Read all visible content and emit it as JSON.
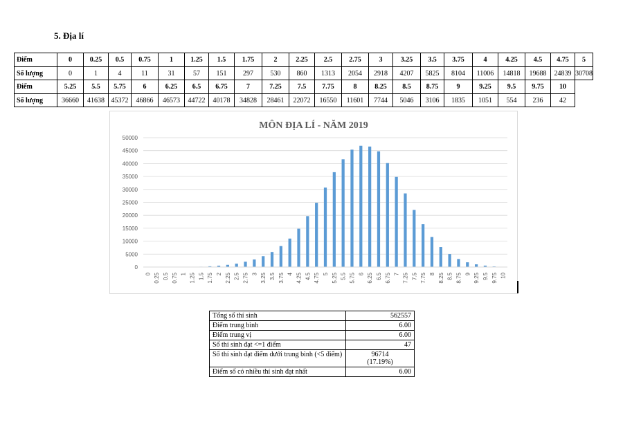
{
  "heading": "5.  Địa lí",
  "score_table": {
    "row1_header": "Điểm",
    "row1": [
      "0",
      "0.25",
      "0.5",
      "0.75",
      "1",
      "1.25",
      "1.5",
      "1.75",
      "2",
      "2.25",
      "2.5",
      "2.75",
      "3",
      "3.25",
      "3.5",
      "3.75",
      "4",
      "4.25",
      "4.5",
      "4.75",
      "5"
    ],
    "row2_header": "Số lượng",
    "row2": [
      "0",
      "1",
      "4",
      "11",
      "31",
      "57",
      "151",
      "297",
      "530",
      "860",
      "1313",
      "2054",
      "2918",
      "4207",
      "5825",
      "8104",
      "11006",
      "14818",
      "19688",
      "24839",
      "30708"
    ],
    "row3_header": "Điểm",
    "row3": [
      "5.25",
      "5.5",
      "5.75",
      "6",
      "6.25",
      "6.5",
      "6.75",
      "7",
      "7.25",
      "7.5",
      "7.75",
      "8",
      "8.25",
      "8.5",
      "8.75",
      "9",
      "9.25",
      "9.5",
      "9.75",
      "10"
    ],
    "row4_header": "Số lượng",
    "row4": [
      "36660",
      "41638",
      "45372",
      "46866",
      "46573",
      "44722",
      "40178",
      "34828",
      "28461",
      "22072",
      "16550",
      "11601",
      "7744",
      "5046",
      "3106",
      "1835",
      "1051",
      "554",
      "236",
      "42"
    ]
  },
  "chart_data": {
    "type": "bar",
    "title": "MÔN ĐỊA LÍ - NĂM 2019",
    "categories": [
      "0",
      "0.25",
      "0.5",
      "0.75",
      "1",
      "1.25",
      "1.5",
      "1.75",
      "2",
      "2.25",
      "2.5",
      "2.75",
      "3",
      "3.25",
      "3.5",
      "3.75",
      "4",
      "4.25",
      "4.5",
      "4.75",
      "5",
      "5.25",
      "5.5",
      "5.75",
      "6",
      "6.25",
      "6.5",
      "6.75",
      "7",
      "7.25",
      "7.5",
      "7.75",
      "8",
      "8.25",
      "8.5",
      "8.75",
      "9",
      "9.25",
      "9.5",
      "9.75",
      "10"
    ],
    "values": [
      0,
      1,
      4,
      11,
      31,
      57,
      151,
      297,
      530,
      860,
      1313,
      2054,
      2918,
      4207,
      5825,
      8104,
      11006,
      14818,
      19688,
      24839,
      30708,
      36660,
      41638,
      45372,
      46866,
      46573,
      44722,
      40178,
      34828,
      28461,
      22072,
      16550,
      11601,
      7744,
      5046,
      3106,
      1835,
      1051,
      554,
      236,
      42
    ],
    "ylim": [
      0,
      50000
    ],
    "yticks": [
      "0",
      "5000",
      "10000",
      "15000",
      "20000",
      "25000",
      "30000",
      "35000",
      "40000",
      "45000",
      "50000"
    ],
    "grid": true,
    "bar_color": "#5b9bd5"
  },
  "stats": [
    {
      "label": "Tổng số thí sinh",
      "value": "562557"
    },
    {
      "label": "Điểm trung bình",
      "value": "6.00"
    },
    {
      "label": "Điểm trung vị",
      "value": "6.00"
    },
    {
      "label": "Số thí sinh đạt <=1 điểm",
      "value": "47"
    },
    {
      "label": "Số thí sinh đạt điểm dưới trung bình (<5 điểm)",
      "value": "96714",
      "value2": "(17.19%)"
    },
    {
      "label": "Điểm số có nhiều thí sinh đạt nhất",
      "value": "6.00"
    }
  ]
}
